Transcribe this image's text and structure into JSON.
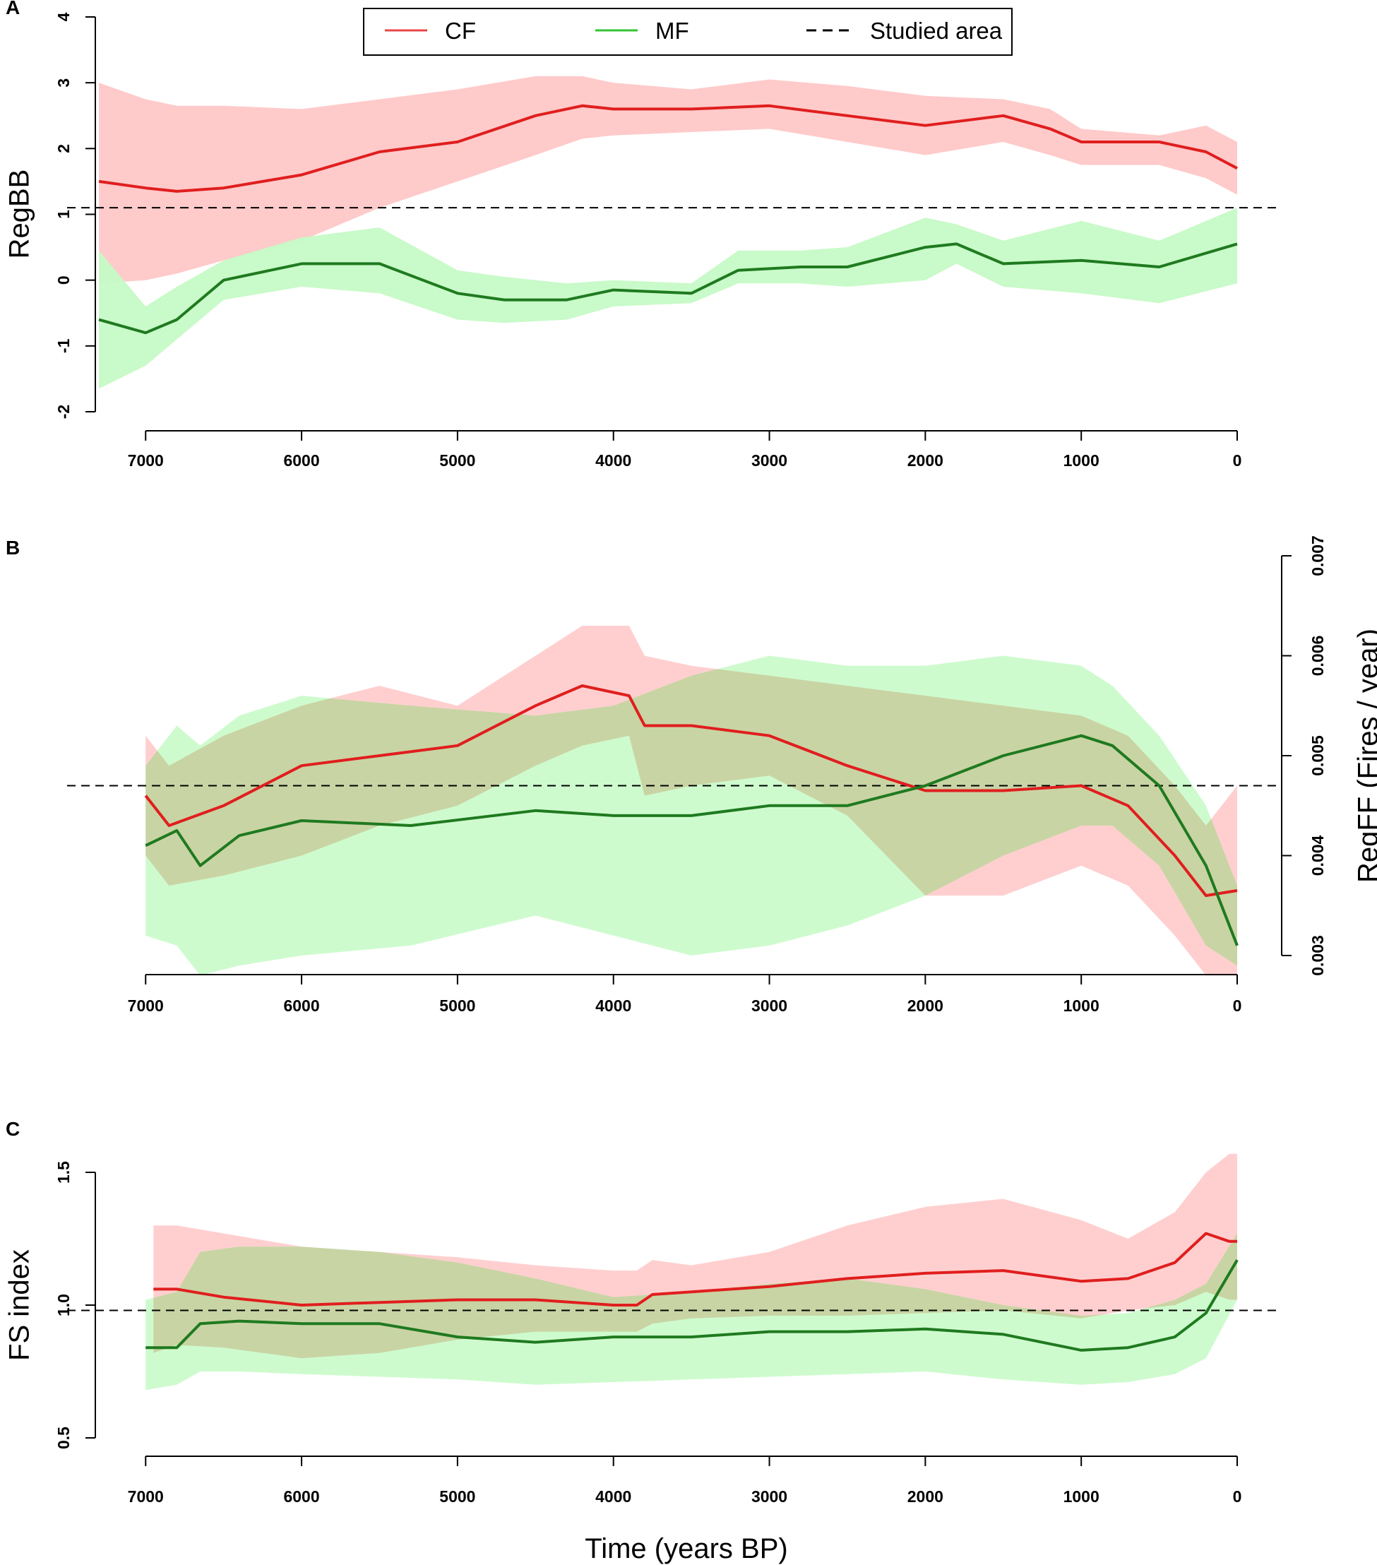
{
  "colors": {
    "cf_line": "#e01e1e",
    "cf_band": "#ffc7c7",
    "mf_line": "#1f7a1f",
    "mf_band": "#c6fac6",
    "overlap": "#c9d4a4",
    "reference": "#000000"
  },
  "legend": {
    "cf": "CF",
    "mf": "MF",
    "ref": "Studied area",
    "cf_color": "#e8474a",
    "mf_color": "#33c433"
  },
  "x_axis": {
    "title": "Time (years BP)",
    "ticks": [
      7000,
      6000,
      5000,
      4000,
      3000,
      2000,
      1000,
      0
    ],
    "range": [
      7300,
      0
    ]
  },
  "chart_data": [
    {
      "label": "A",
      "type": "area",
      "ylabel": "RegBB",
      "ylim": [
        -2,
        4
      ],
      "yticks": [
        -2,
        -1,
        0,
        1,
        2,
        3,
        4
      ],
      "reference": 1.1,
      "series": [
        {
          "name": "CF",
          "x": [
            7300,
            7000,
            6800,
            6500,
            6000,
            5500,
            5000,
            4500,
            4200,
            4000,
            3500,
            3000,
            2500,
            2000,
            1500,
            1200,
            1000,
            500,
            200,
            0
          ],
          "mean": [
            1.5,
            1.4,
            1.35,
            1.4,
            1.6,
            1.95,
            2.1,
            2.5,
            2.65,
            2.6,
            2.6,
            2.65,
            2.5,
            2.35,
            2.5,
            2.3,
            2.1,
            2.1,
            1.95,
            1.7
          ],
          "lower": [
            -0.05,
            0.0,
            0.1,
            0.3,
            0.6,
            1.1,
            1.5,
            1.9,
            2.15,
            2.2,
            2.25,
            2.3,
            2.1,
            1.9,
            2.1,
            1.9,
            1.75,
            1.75,
            1.55,
            1.3
          ],
          "upper": [
            3.0,
            2.75,
            2.65,
            2.65,
            2.6,
            2.75,
            2.9,
            3.1,
            3.1,
            3.0,
            2.9,
            3.05,
            2.95,
            2.8,
            2.75,
            2.6,
            2.3,
            2.2,
            2.35,
            2.1
          ]
        },
        {
          "name": "MF",
          "x": [
            7300,
            7000,
            6800,
            6500,
            6000,
            5500,
            5000,
            4700,
            4300,
            4000,
            3500,
            3200,
            2800,
            2500,
            2000,
            1800,
            1500,
            1000,
            500,
            0
          ],
          "mean": [
            -0.6,
            -0.8,
            -0.6,
            0.0,
            0.25,
            0.25,
            -0.2,
            -0.3,
            -0.3,
            -0.15,
            -0.2,
            0.15,
            0.2,
            0.2,
            0.5,
            0.55,
            0.25,
            0.3,
            0.2,
            0.55
          ],
          "lower": [
            -1.65,
            -1.3,
            -0.9,
            -0.3,
            -0.1,
            -0.2,
            -0.6,
            -0.65,
            -0.6,
            -0.4,
            -0.35,
            -0.05,
            -0.05,
            -0.1,
            0.0,
            0.25,
            -0.1,
            -0.2,
            -0.35,
            -0.05
          ],
          "upper": [
            0.45,
            -0.4,
            -0.1,
            0.3,
            0.65,
            0.8,
            0.15,
            0.05,
            -0.05,
            0.0,
            -0.05,
            0.45,
            0.45,
            0.5,
            0.95,
            0.85,
            0.6,
            0.9,
            0.6,
            1.1
          ]
        }
      ]
    },
    {
      "label": "B",
      "type": "area",
      "ylabel": "RegFF (Fires / year)",
      "ylim": [
        0.003,
        0.007
      ],
      "yticks": [
        "0.003",
        "0.004",
        "0.005",
        "0.006",
        "0.007"
      ],
      "reference": 0.0047,
      "series": [
        {
          "name": "CF",
          "x": [
            7000,
            6850,
            6500,
            6000,
            5500,
            5000,
            4500,
            4200,
            3900,
            3800,
            3500,
            3000,
            2500,
            2000,
            1500,
            1000,
            700,
            400,
            200,
            0
          ],
          "mean": [
            0.0046,
            0.0043,
            0.0045,
            0.0049,
            0.005,
            0.0051,
            0.0055,
            0.0057,
            0.0056,
            0.0053,
            0.0053,
            0.0052,
            0.0049,
            0.00465,
            0.00465,
            0.0047,
            0.0045,
            0.004,
            0.0036,
            0.00365
          ],
          "lower": [
            0.004,
            0.0037,
            0.0038,
            0.004,
            0.0043,
            0.0045,
            0.0049,
            0.0051,
            0.0052,
            0.0046,
            0.0047,
            0.0048,
            0.0044,
            0.0036,
            0.0036,
            0.0039,
            0.0037,
            0.0032,
            0.0028,
            0.0028
          ],
          "upper": [
            0.0052,
            0.0049,
            0.0052,
            0.0055,
            0.0057,
            0.0055,
            0.006,
            0.0063,
            0.0063,
            0.006,
            0.0059,
            0.0058,
            0.0057,
            0.0056,
            0.0055,
            0.0054,
            0.0052,
            0.0047,
            0.0043,
            0.0047
          ]
        },
        {
          "name": "MF",
          "x": [
            7000,
            6800,
            6650,
            6400,
            6000,
            5300,
            4500,
            4000,
            3500,
            3000,
            2500,
            2000,
            1500,
            1000,
            800,
            500,
            200,
            0
          ],
          "mean": [
            0.0041,
            0.00425,
            0.0039,
            0.0042,
            0.00435,
            0.0043,
            0.00445,
            0.0044,
            0.0044,
            0.0045,
            0.0045,
            0.0047,
            0.005,
            0.0052,
            0.0051,
            0.0047,
            0.0039,
            0.0031
          ],
          "lower": [
            0.0032,
            0.0031,
            0.0028,
            0.0029,
            0.003,
            0.0031,
            0.0034,
            0.0032,
            0.003,
            0.0031,
            0.0033,
            0.0036,
            0.004,
            0.0043,
            0.0043,
            0.0039,
            0.0031,
            0.0029
          ],
          "upper": [
            0.0049,
            0.0053,
            0.0051,
            0.0054,
            0.0056,
            0.0055,
            0.0054,
            0.0055,
            0.0058,
            0.006,
            0.0059,
            0.0059,
            0.006,
            0.0059,
            0.0057,
            0.0052,
            0.0045,
            0.0037
          ]
        }
      ]
    },
    {
      "label": "C",
      "type": "area",
      "ylabel": "FS index",
      "ylim": [
        0.5,
        1.5
      ],
      "yticks": [
        "0.5",
        "1.0",
        "1.5"
      ],
      "reference": 0.98,
      "series": [
        {
          "name": "CF",
          "x": [
            6950,
            6800,
            6500,
            6000,
            5500,
            5000,
            4500,
            4000,
            3850,
            3750,
            3500,
            3000,
            2500,
            2000,
            1500,
            1000,
            700,
            400,
            200,
            50,
            0
          ],
          "mean": [
            1.06,
            1.06,
            1.03,
            1.0,
            1.01,
            1.02,
            1.02,
            1.0,
            1.0,
            1.04,
            1.05,
            1.07,
            1.1,
            1.12,
            1.13,
            1.09,
            1.1,
            1.16,
            1.27,
            1.24,
            1.24
          ],
          "lower": [
            0.82,
            0.85,
            0.84,
            0.8,
            0.82,
            0.87,
            0.9,
            0.9,
            0.9,
            0.93,
            0.95,
            0.96,
            0.96,
            0.97,
            0.98,
            0.95,
            0.98,
            1.0,
            1.05,
            1.02,
            1.02
          ],
          "upper": [
            1.3,
            1.3,
            1.27,
            1.22,
            1.2,
            1.18,
            1.15,
            1.13,
            1.13,
            1.17,
            1.15,
            1.2,
            1.3,
            1.37,
            1.4,
            1.32,
            1.25,
            1.35,
            1.5,
            1.57,
            1.57
          ]
        },
        {
          "name": "MF",
          "x": [
            7000,
            6800,
            6650,
            6400,
            6000,
            5500,
            5000,
            4500,
            4000,
            3500,
            3000,
            2500,
            2000,
            1500,
            1000,
            700,
            400,
            200,
            0
          ],
          "mean": [
            0.84,
            0.84,
            0.93,
            0.94,
            0.93,
            0.93,
            0.88,
            0.86,
            0.88,
            0.88,
            0.9,
            0.9,
            0.91,
            0.89,
            0.83,
            0.84,
            0.88,
            0.97,
            1.17
          ],
          "lower": [
            0.68,
            0.7,
            0.75,
            0.75,
            0.74,
            0.73,
            0.72,
            0.7,
            0.71,
            0.72,
            0.73,
            0.74,
            0.75,
            0.72,
            0.7,
            0.71,
            0.74,
            0.8,
            1.02
          ],
          "upper": [
            1.02,
            1.05,
            1.2,
            1.22,
            1.22,
            1.2,
            1.16,
            1.1,
            1.03,
            1.05,
            1.08,
            1.1,
            1.06,
            1.0,
            0.96,
            0.97,
            1.02,
            1.08,
            1.27
          ]
        }
      ]
    }
  ]
}
